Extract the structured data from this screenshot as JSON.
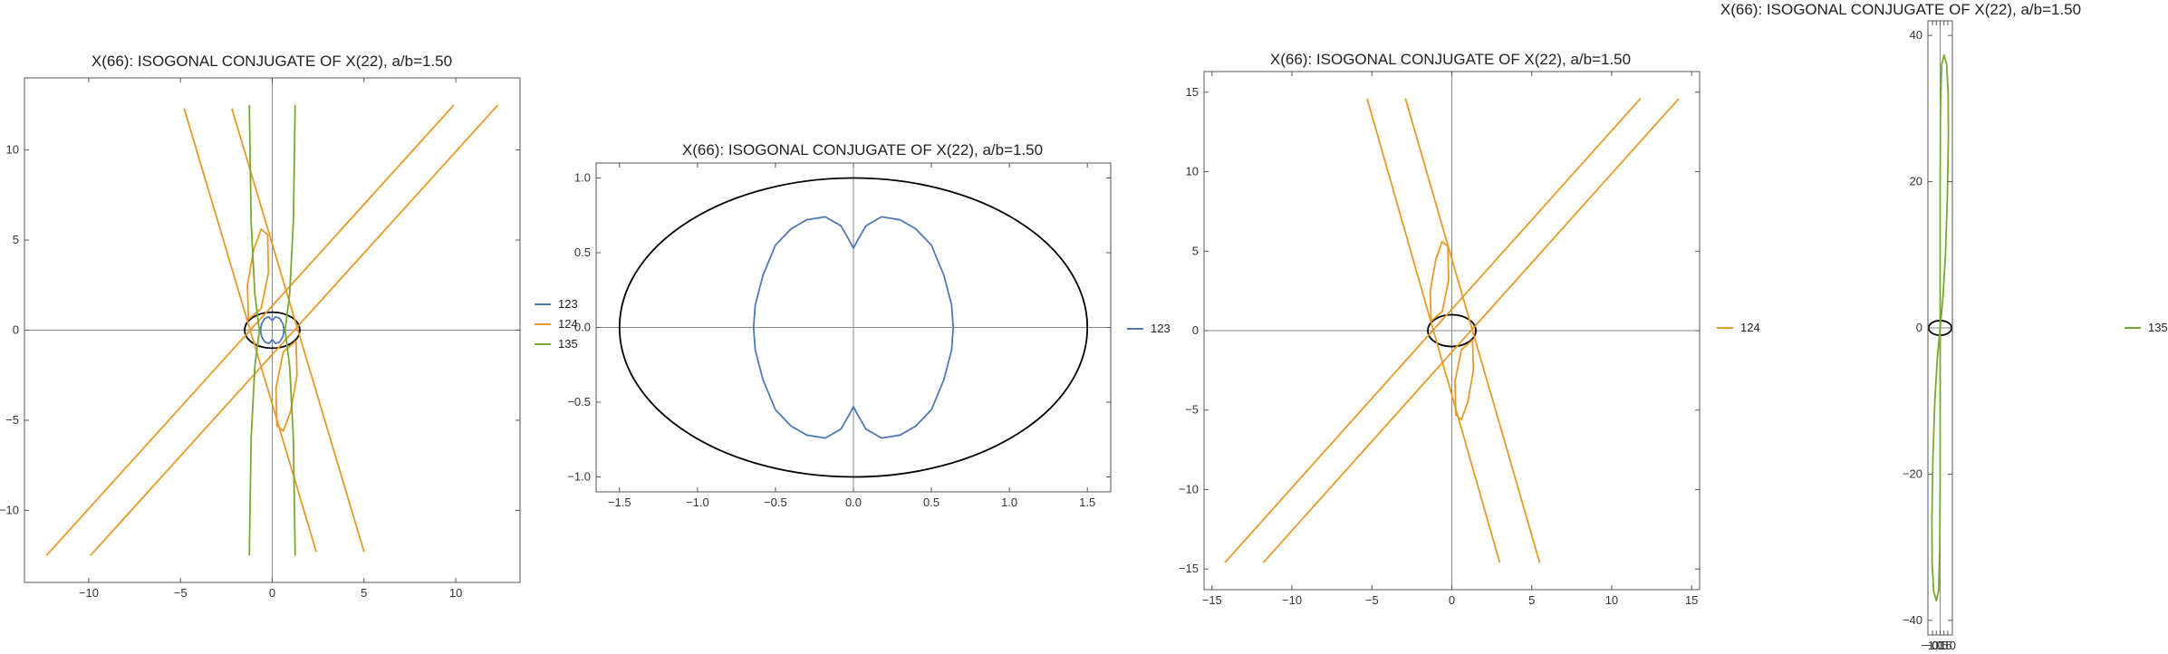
{
  "chart_data": [
    {
      "type": "line",
      "title": "X(66): ISOGONAL CONJUGATE OF X(22), a/b=1.50",
      "xlabel": "",
      "ylabel": "",
      "xlim": [
        -13.5,
        13.5
      ],
      "ylim": [
        -14,
        14
      ],
      "xticks": [
        -10,
        -5,
        0,
        5,
        10
      ],
      "yticks": [
        -10,
        -5,
        0,
        5,
        10
      ],
      "xtick_labels": [
        "−10",
        "−5",
        "0",
        "5",
        "10"
      ],
      "ytick_labels": [
        "−10",
        "−5",
        "0",
        "5",
        "10"
      ],
      "ellipse": {
        "a": 1.5,
        "b": 1.0,
        "color": "#000000"
      },
      "legend": [
        "123",
        "124",
        "135"
      ],
      "legend_position": "right",
      "series": [
        {
          "name": "123",
          "color": "#4e79b5",
          "kind": "closed",
          "points": [
            [
              0.0,
              0.53
            ],
            [
              0.18,
              0.74
            ],
            [
              0.4,
              0.66
            ],
            [
              0.58,
              0.35
            ],
            [
              0.64,
              0.0
            ],
            [
              0.58,
              -0.35
            ],
            [
              0.4,
              -0.66
            ],
            [
              0.18,
              -0.74
            ],
            [
              0.0,
              -0.53
            ],
            [
              -0.18,
              -0.74
            ],
            [
              -0.4,
              -0.66
            ],
            [
              -0.58,
              -0.35
            ],
            [
              -0.64,
              0.0
            ],
            [
              -0.58,
              0.35
            ],
            [
              -0.4,
              0.66
            ],
            [
              -0.18,
              0.74
            ],
            [
              0.0,
              0.53
            ]
          ]
        },
        {
          "name": "124",
          "color": "#e69a28",
          "kind": "open",
          "points": [
            [
              -12.3,
              -12.5
            ],
            [
              9.9,
              12.5
            ]
          ]
        },
        {
          "name": "124",
          "color": "#e69a28",
          "kind": "open",
          "points": [
            [
              -9.9,
              -12.5
            ],
            [
              12.3,
              12.5
            ]
          ]
        },
        {
          "name": "124",
          "color": "#e69a28",
          "kind": "open",
          "points": [
            [
              -4.8,
              12.3
            ],
            [
              2.4,
              -12.3
            ]
          ]
        },
        {
          "name": "124",
          "color": "#e69a28",
          "kind": "open",
          "points": [
            [
              -2.2,
              12.3
            ],
            [
              5.0,
              -12.3
            ]
          ]
        },
        {
          "name": "124",
          "color": "#e69a28",
          "kind": "closed",
          "points": [
            [
              -1.3,
              0.6
            ],
            [
              -1.35,
              2.5
            ],
            [
              -1.0,
              4.5
            ],
            [
              -0.6,
              5.6
            ],
            [
              -0.25,
              5.3
            ],
            [
              -0.2,
              3.2
            ],
            [
              -0.6,
              1.2
            ],
            [
              -1.3,
              0.6
            ]
          ]
        },
        {
          "name": "124",
          "color": "#e69a28",
          "kind": "closed",
          "points": [
            [
              1.3,
              -0.6
            ],
            [
              1.35,
              -2.5
            ],
            [
              1.0,
              -4.5
            ],
            [
              0.6,
              -5.6
            ],
            [
              0.25,
              -5.3
            ],
            [
              0.2,
              -3.2
            ],
            [
              0.6,
              -1.2
            ],
            [
              1.3,
              -0.6
            ]
          ]
        },
        {
          "name": "135",
          "color": "#79a832",
          "kind": "open",
          "points": [
            [
              -1.25,
              -12.5
            ],
            [
              -1.15,
              -6
            ],
            [
              -0.95,
              -2
            ],
            [
              -0.7,
              0
            ],
            [
              -0.95,
              2
            ],
            [
              -1.15,
              6
            ],
            [
              -1.25,
              12.5
            ]
          ]
        },
        {
          "name": "135",
          "color": "#79a832",
          "kind": "open",
          "points": [
            [
              1.25,
              -12.5
            ],
            [
              1.15,
              -6
            ],
            [
              0.95,
              -2
            ],
            [
              0.7,
              0
            ],
            [
              0.95,
              2
            ],
            [
              1.15,
              6
            ],
            [
              1.25,
              12.5
            ]
          ]
        }
      ]
    },
    {
      "type": "line",
      "title": "X(66): ISOGONAL CONJUGATE OF X(22), a/b=1.50",
      "xlabel": "",
      "ylabel": "",
      "xlim": [
        -1.65,
        1.65
      ],
      "ylim": [
        -1.1,
        1.1
      ],
      "xticks": [
        -1.5,
        -1.0,
        -0.5,
        0.0,
        0.5,
        1.0,
        1.5
      ],
      "yticks": [
        -1.0,
        -0.5,
        0.0,
        0.5,
        1.0
      ],
      "xtick_labels": [
        "−1.5",
        "−1.0",
        "−0.5",
        "0.0",
        "0.5",
        "1.0",
        "1.5"
      ],
      "ytick_labels": [
        "−1.0",
        "−0.5",
        "0.0",
        "0.5",
        "1.0"
      ],
      "ellipse": {
        "a": 1.5,
        "b": 1.0,
        "color": "#000000"
      },
      "legend": [
        "123"
      ],
      "legend_position": "right",
      "series": [
        {
          "name": "123",
          "color": "#4e79b5",
          "kind": "closed",
          "points": [
            [
              0.0,
              0.53
            ],
            [
              0.03,
              0.59
            ],
            [
              0.08,
              0.68
            ],
            [
              0.18,
              0.74
            ],
            [
              0.3,
              0.72
            ],
            [
              0.4,
              0.66
            ],
            [
              0.5,
              0.55
            ],
            [
              0.58,
              0.35
            ],
            [
              0.63,
              0.15
            ],
            [
              0.64,
              0.0
            ],
            [
              0.63,
              -0.15
            ],
            [
              0.58,
              -0.35
            ],
            [
              0.5,
              -0.55
            ],
            [
              0.4,
              -0.66
            ],
            [
              0.3,
              -0.72
            ],
            [
              0.18,
              -0.74
            ],
            [
              0.08,
              -0.68
            ],
            [
              0.03,
              -0.59
            ],
            [
              0.0,
              -0.53
            ],
            [
              -0.03,
              -0.59
            ],
            [
              -0.08,
              -0.68
            ],
            [
              -0.18,
              -0.74
            ],
            [
              -0.3,
              -0.72
            ],
            [
              -0.4,
              -0.66
            ],
            [
              -0.5,
              -0.55
            ],
            [
              -0.58,
              -0.35
            ],
            [
              -0.63,
              -0.15
            ],
            [
              -0.64,
              0.0
            ],
            [
              -0.63,
              0.15
            ],
            [
              -0.58,
              0.35
            ],
            [
              -0.5,
              0.55
            ],
            [
              -0.4,
              0.66
            ],
            [
              -0.3,
              0.72
            ],
            [
              -0.18,
              0.74
            ],
            [
              -0.08,
              0.68
            ],
            [
              -0.03,
              0.59
            ],
            [
              0.0,
              0.53
            ]
          ]
        }
      ]
    },
    {
      "type": "line",
      "title": "X(66): ISOGONAL CONJUGATE OF X(22), a/b=1.50",
      "xlabel": "",
      "ylabel": "",
      "xlim": [
        -15.5,
        15.5
      ],
      "ylim": [
        -16.3,
        16.3
      ],
      "xticks": [
        -15,
        -10,
        -5,
        0,
        5,
        10,
        15
      ],
      "yticks": [
        -15,
        -10,
        -5,
        0,
        5,
        10,
        15
      ],
      "xtick_labels": [
        "−15",
        "−10",
        "−5",
        "0",
        "5",
        "10",
        "15"
      ],
      "ytick_labels": [
        "−15",
        "−10",
        "−5",
        "0",
        "5",
        "10",
        "15"
      ],
      "ellipse": {
        "a": 1.5,
        "b": 1.0,
        "color": "#000000"
      },
      "legend": [
        "124"
      ],
      "legend_position": "right",
      "series": [
        {
          "name": "124",
          "color": "#e69a28",
          "kind": "open",
          "points": [
            [
              -14.2,
              -14.6
            ],
            [
              11.8,
              14.6
            ]
          ]
        },
        {
          "name": "124",
          "color": "#e69a28",
          "kind": "open",
          "points": [
            [
              -11.8,
              -14.6
            ],
            [
              14.2,
              14.6
            ]
          ]
        },
        {
          "name": "124",
          "color": "#e69a28",
          "kind": "open",
          "points": [
            [
              -5.3,
              14.6
            ],
            [
              3.0,
              -14.6
            ]
          ]
        },
        {
          "name": "124",
          "color": "#e69a28",
          "kind": "open",
          "points": [
            [
              -2.9,
              14.6
            ],
            [
              5.5,
              -14.6
            ]
          ]
        },
        {
          "name": "124",
          "color": "#e69a28",
          "kind": "closed",
          "points": [
            [
              -1.3,
              0.6
            ],
            [
              -1.35,
              2.5
            ],
            [
              -1.0,
              4.5
            ],
            [
              -0.6,
              5.6
            ],
            [
              -0.25,
              5.3
            ],
            [
              -0.2,
              3.2
            ],
            [
              -0.6,
              1.2
            ],
            [
              -1.3,
              0.6
            ]
          ]
        },
        {
          "name": "124",
          "color": "#e69a28",
          "kind": "closed",
          "points": [
            [
              1.3,
              -0.6
            ],
            [
              1.35,
              -2.5
            ],
            [
              1.0,
              -4.5
            ],
            [
              0.6,
              -5.6
            ],
            [
              0.25,
              -5.3
            ],
            [
              0.2,
              -3.2
            ],
            [
              0.6,
              -1.2
            ],
            [
              1.3,
              -0.6
            ]
          ]
        }
      ]
    },
    {
      "type": "line",
      "title": "X(66): ISOGONAL CONJUGATE OF X(22), a/b=1.50",
      "xlabel": "",
      "ylabel": "",
      "xlim": [
        -1.6,
        1.6
      ],
      "ylim": [
        -42,
        42
      ],
      "xticks": [
        -1.0,
        -0.5,
        0.0,
        0.5,
        1.0
      ],
      "yticks": [
        -40,
        -20,
        0,
        20,
        40
      ],
      "xtick_labels": [
        "−1.0",
        "−0.5",
        "0.0",
        "0.5",
        "1.0"
      ],
      "ytick_labels": [
        "−40",
        "−20",
        "0",
        "20",
        "40"
      ],
      "ellipse": {
        "a": 1.5,
        "b": 1.0,
        "color": "#000000"
      },
      "legend": [
        "135"
      ],
      "legend_position": "right",
      "series": [
        {
          "name": "135",
          "color": "#79a832",
          "kind": "closed",
          "points": [
            [
              0.0,
              0.0
            ],
            [
              0.35,
              4.0
            ],
            [
              0.7,
              10.0
            ],
            [
              0.95,
              18.0
            ],
            [
              1.08,
              26.0
            ],
            [
              1.05,
              32.0
            ],
            [
              0.85,
              36.0
            ],
            [
              0.5,
              37.3
            ],
            [
              0.2,
              36.0
            ],
            [
              0.05,
              30.0
            ],
            [
              0.0,
              20.0
            ],
            [
              0.0,
              10.0
            ],
            [
              0.0,
              0.0
            ],
            [
              0.0,
              -10.0
            ],
            [
              0.0,
              -20.0
            ],
            [
              -0.05,
              -30.0
            ],
            [
              -0.2,
              -36.0
            ],
            [
              -0.5,
              -37.3
            ],
            [
              -0.85,
              -36.0
            ],
            [
              -1.05,
              -32.0
            ],
            [
              -1.08,
              -26.0
            ],
            [
              -0.95,
              -18.0
            ],
            [
              -0.7,
              -10.0
            ],
            [
              -0.35,
              -4.0
            ],
            [
              0.0,
              0.0
            ]
          ]
        }
      ]
    }
  ]
}
